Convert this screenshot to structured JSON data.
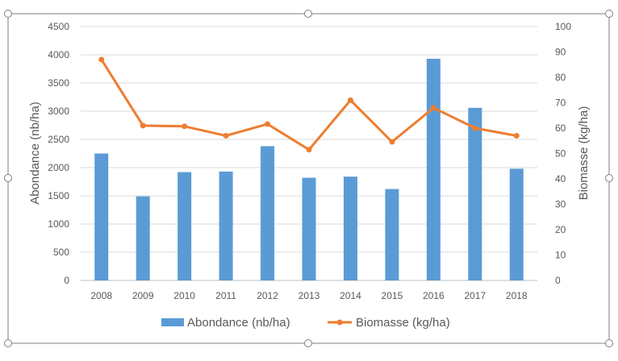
{
  "chart_data": {
    "type": "bar",
    "title": "",
    "categories": [
      "2008",
      "2009",
      "2010",
      "2011",
      "2012",
      "2013",
      "2014",
      "2015",
      "2016",
      "2017",
      "2018"
    ],
    "series": [
      {
        "name": "Abondance (nb/ha)",
        "type": "bar",
        "axis": "left",
        "color": "#5B9BD5",
        "values": [
          2250,
          1490,
          1920,
          1930,
          2380,
          1820,
          1840,
          1620,
          3930,
          3060,
          1980
        ]
      },
      {
        "name": "Biomasse (kg/ha)",
        "type": "line",
        "axis": "right",
        "color": "#ED7D31",
        "values": [
          87,
          61,
          60.7,
          57,
          61.6,
          51.5,
          71,
          54.6,
          68,
          60,
          57
        ]
      }
    ],
    "xlabel": "",
    "ylabel": "Abondance (nb/ha)",
    "y2label": "Biomasse (kg/ha)",
    "ylim": [
      0,
      4500
    ],
    "y2lim": [
      0,
      100
    ],
    "yticks": [
      "0",
      "500",
      "1000",
      "1500",
      "2000",
      "2500",
      "3000",
      "3500",
      "4000",
      "4500"
    ],
    "y2ticks": [
      "0",
      "10",
      "20",
      "30",
      "40",
      "50",
      "60",
      "70",
      "80",
      "90",
      "100"
    ],
    "grid": true,
    "legend_position": "bottom"
  }
}
